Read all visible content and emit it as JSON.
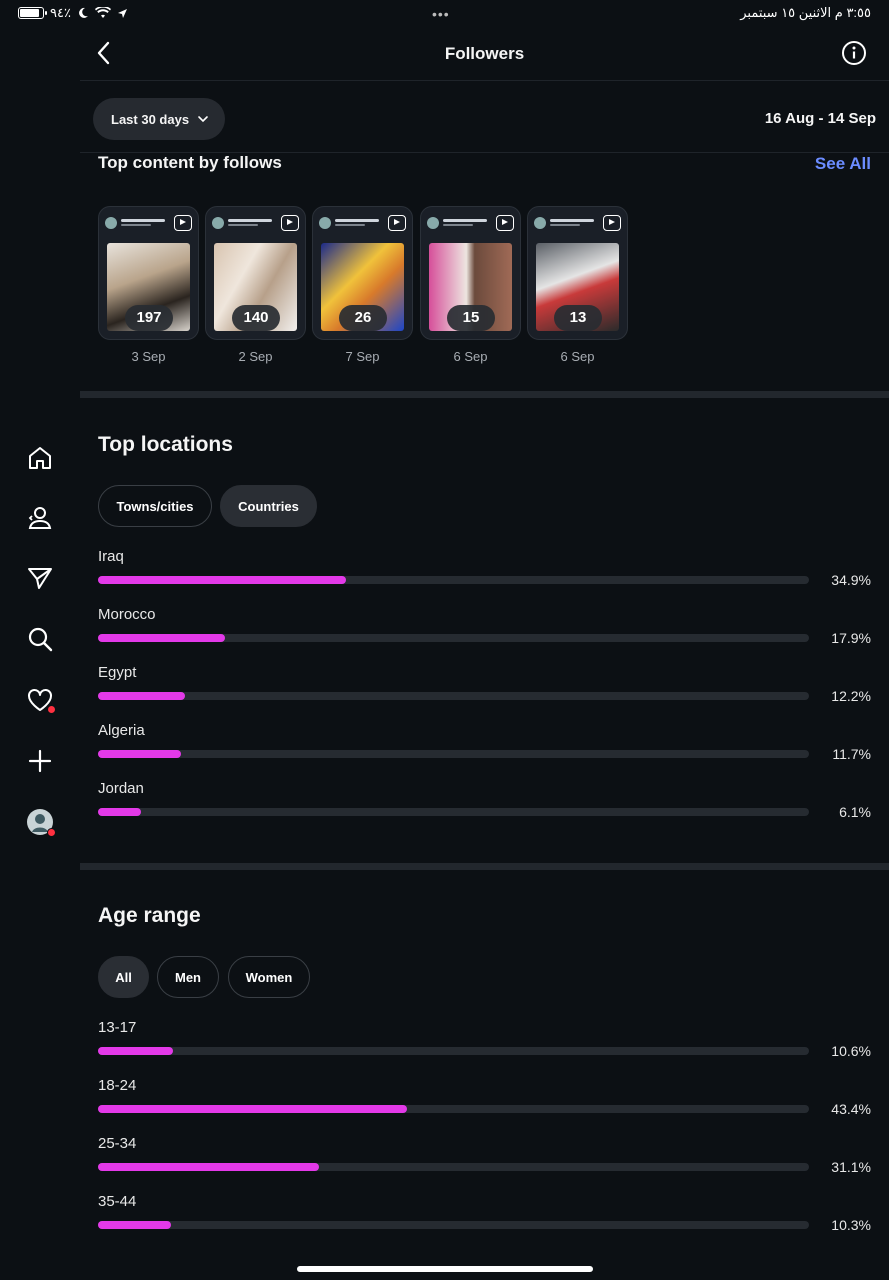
{
  "status": {
    "battery": "٩٤٪",
    "datetime": "٣:٥٥ م  الاثنين ١٥ سبتمبر"
  },
  "header": {
    "title": "Followers"
  },
  "range": {
    "button_label": "Last 30 days",
    "dates": "16 Aug - 14 Sep"
  },
  "top_content": {
    "title": "Top content by follows",
    "see_all": "See All",
    "items": [
      {
        "count": "197",
        "date": "3 Sep"
      },
      {
        "count": "140",
        "date": "2 Sep"
      },
      {
        "count": "26",
        "date": "7 Sep"
      },
      {
        "count": "15",
        "date": "6 Sep"
      },
      {
        "count": "13",
        "date": "6 Sep"
      }
    ]
  },
  "locations": {
    "title": "Top locations",
    "tabs": [
      "Towns/cities",
      "Countries"
    ],
    "active_tab": "Countries",
    "rows": [
      {
        "label": "Iraq",
        "pct": "34.9%",
        "value": 34.9
      },
      {
        "label": "Morocco",
        "pct": "17.9%",
        "value": 17.9
      },
      {
        "label": "Egypt",
        "pct": "12.2%",
        "value": 12.2
      },
      {
        "label": "Algeria",
        "pct": "11.7%",
        "value": 11.7
      },
      {
        "label": "Jordan",
        "pct": "6.1%",
        "value": 6.1
      }
    ]
  },
  "age": {
    "title": "Age range",
    "tabs": [
      "All",
      "Men",
      "Women"
    ],
    "active_tab": "All",
    "rows": [
      {
        "label": "13-17",
        "pct": "10.6%",
        "value": 10.6
      },
      {
        "label": "18-24",
        "pct": "43.4%",
        "value": 43.4
      },
      {
        "label": "25-34",
        "pct": "31.1%",
        "value": 31.1
      },
      {
        "label": "35-44",
        "pct": "10.3%",
        "value": 10.3
      }
    ]
  },
  "colors": {
    "accent_bar": "#e339e8",
    "link": "#6b8cff",
    "background": "#0c1014"
  },
  "sidebar_icons": [
    "home-icon",
    "profile-switch-icon",
    "send-icon",
    "search-icon",
    "heart-icon",
    "plus-icon",
    "avatar"
  ]
}
